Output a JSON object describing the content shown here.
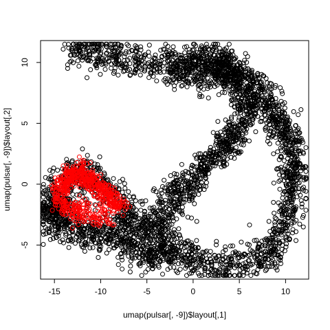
{
  "chart_data": {
    "type": "scatter",
    "xlabel": "umap(pulsar[, -9])$layout[,1]",
    "ylabel": "umap(pulsar[, -9])$layout[,2]",
    "xlim": [
      -16.5,
      12.5
    ],
    "ylim": [
      -7.8,
      11.8
    ],
    "x_ticks": [
      -15,
      -10,
      -5,
      0,
      5,
      10
    ],
    "y_ticks": [
      -5,
      0,
      5,
      10
    ],
    "x_tick_labels": [
      "-15",
      "-10",
      "-5",
      "0",
      "5",
      "10"
    ],
    "y_tick_labels": [
      "-5",
      "0",
      "5",
      "10"
    ],
    "grid": false,
    "legend": "none",
    "marker": "open-circle",
    "series": [
      {
        "color": "#000000",
        "point_count": 4200,
        "shape_points": [
          [
            -12.5,
            11.0
          ],
          [
            -10.5,
            10.7
          ],
          [
            -8.5,
            10.4
          ],
          [
            -6.5,
            10.1
          ],
          [
            -4.5,
            9.9
          ],
          [
            -2.5,
            9.8
          ],
          [
            -0.5,
            10.0
          ],
          [
            1.0,
            10.4
          ],
          [
            2.5,
            10.3
          ],
          [
            3.5,
            10.0
          ],
          [
            4.5,
            9.3
          ],
          [
            5.5,
            8.8
          ],
          [
            6.5,
            8.0
          ],
          [
            7.5,
            7.0
          ],
          [
            8.5,
            6.0
          ],
          [
            9.5,
            5.0
          ],
          [
            10.3,
            4.0
          ],
          [
            10.7,
            2.5
          ],
          [
            10.8,
            1.0
          ],
          [
            10.8,
            -0.5
          ],
          [
            10.5,
            -2.0
          ],
          [
            10.0,
            -3.5
          ],
          [
            9.0,
            -5.0
          ],
          [
            7.5,
            -6.0
          ],
          [
            5.5,
            -6.5
          ],
          [
            3.5,
            -6.8
          ],
          [
            1.5,
            -6.5
          ],
          [
            -0.5,
            -6.0
          ],
          [
            -2.0,
            -5.5
          ],
          [
            -3.0,
            -5.5
          ],
          [
            -4.5,
            -5.7
          ],
          [
            -6.0,
            -5.2
          ],
          [
            -7.5,
            -4.5
          ],
          [
            -9.0,
            -4.0
          ],
          [
            -10.5,
            -4.2
          ],
          [
            -12.0,
            -3.8
          ],
          [
            -13.5,
            -3.2
          ],
          [
            -14.8,
            -2.8
          ],
          [
            -15.5,
            -2.5
          ],
          [
            -15.3,
            -1.8
          ],
          [
            -14.5,
            -1.5
          ],
          [
            -14.0,
            0.0
          ],
          [
            -13.0,
            0.8
          ],
          [
            -11.5,
            0.7
          ],
          [
            -10.0,
            0.0
          ],
          [
            -8.5,
            -1.0
          ],
          [
            -7.5,
            -2.5
          ],
          [
            -6.0,
            -3.2
          ],
          [
            -4.5,
            -3.2
          ],
          [
            -3.2,
            -3.8
          ],
          [
            -2.5,
            -2.0
          ],
          [
            -2.0,
            -0.5
          ],
          [
            -1.0,
            -0.3
          ],
          [
            0.5,
            0.5
          ],
          [
            1.5,
            1.5
          ],
          [
            2.5,
            2.5
          ],
          [
            3.5,
            3.5
          ],
          [
            4.5,
            4.0
          ],
          [
            5.5,
            5.5
          ],
          [
            6.0,
            6.5
          ],
          [
            5.0,
            7.8
          ],
          [
            3.5,
            8.7
          ],
          [
            2.0,
            9.2
          ],
          [
            0.5,
            9.3
          ],
          [
            -1.5,
            9.3
          ]
        ]
      },
      {
        "color": "#ff0000",
        "point_count": 650,
        "shape_points": [
          [
            -14.5,
            -0.5
          ],
          [
            -14.0,
            0.0
          ],
          [
            -13.5,
            0.5
          ],
          [
            -13.0,
            0.8
          ],
          [
            -12.5,
            1.0
          ],
          [
            -12.0,
            0.9
          ],
          [
            -11.5,
            0.7
          ],
          [
            -11.0,
            0.3
          ],
          [
            -10.5,
            0.0
          ],
          [
            -10.0,
            -0.3
          ],
          [
            -9.5,
            -0.6
          ],
          [
            -9.0,
            -0.9
          ],
          [
            -8.5,
            -1.3
          ],
          [
            -8.0,
            -1.8
          ],
          [
            -14.3,
            -1.5
          ],
          [
            -13.5,
            -2.0
          ],
          [
            -12.5,
            -2.5
          ],
          [
            -11.5,
            -2.2
          ],
          [
            -10.5,
            -2.8
          ],
          [
            -9.5,
            -2.5
          ]
        ]
      }
    ]
  }
}
